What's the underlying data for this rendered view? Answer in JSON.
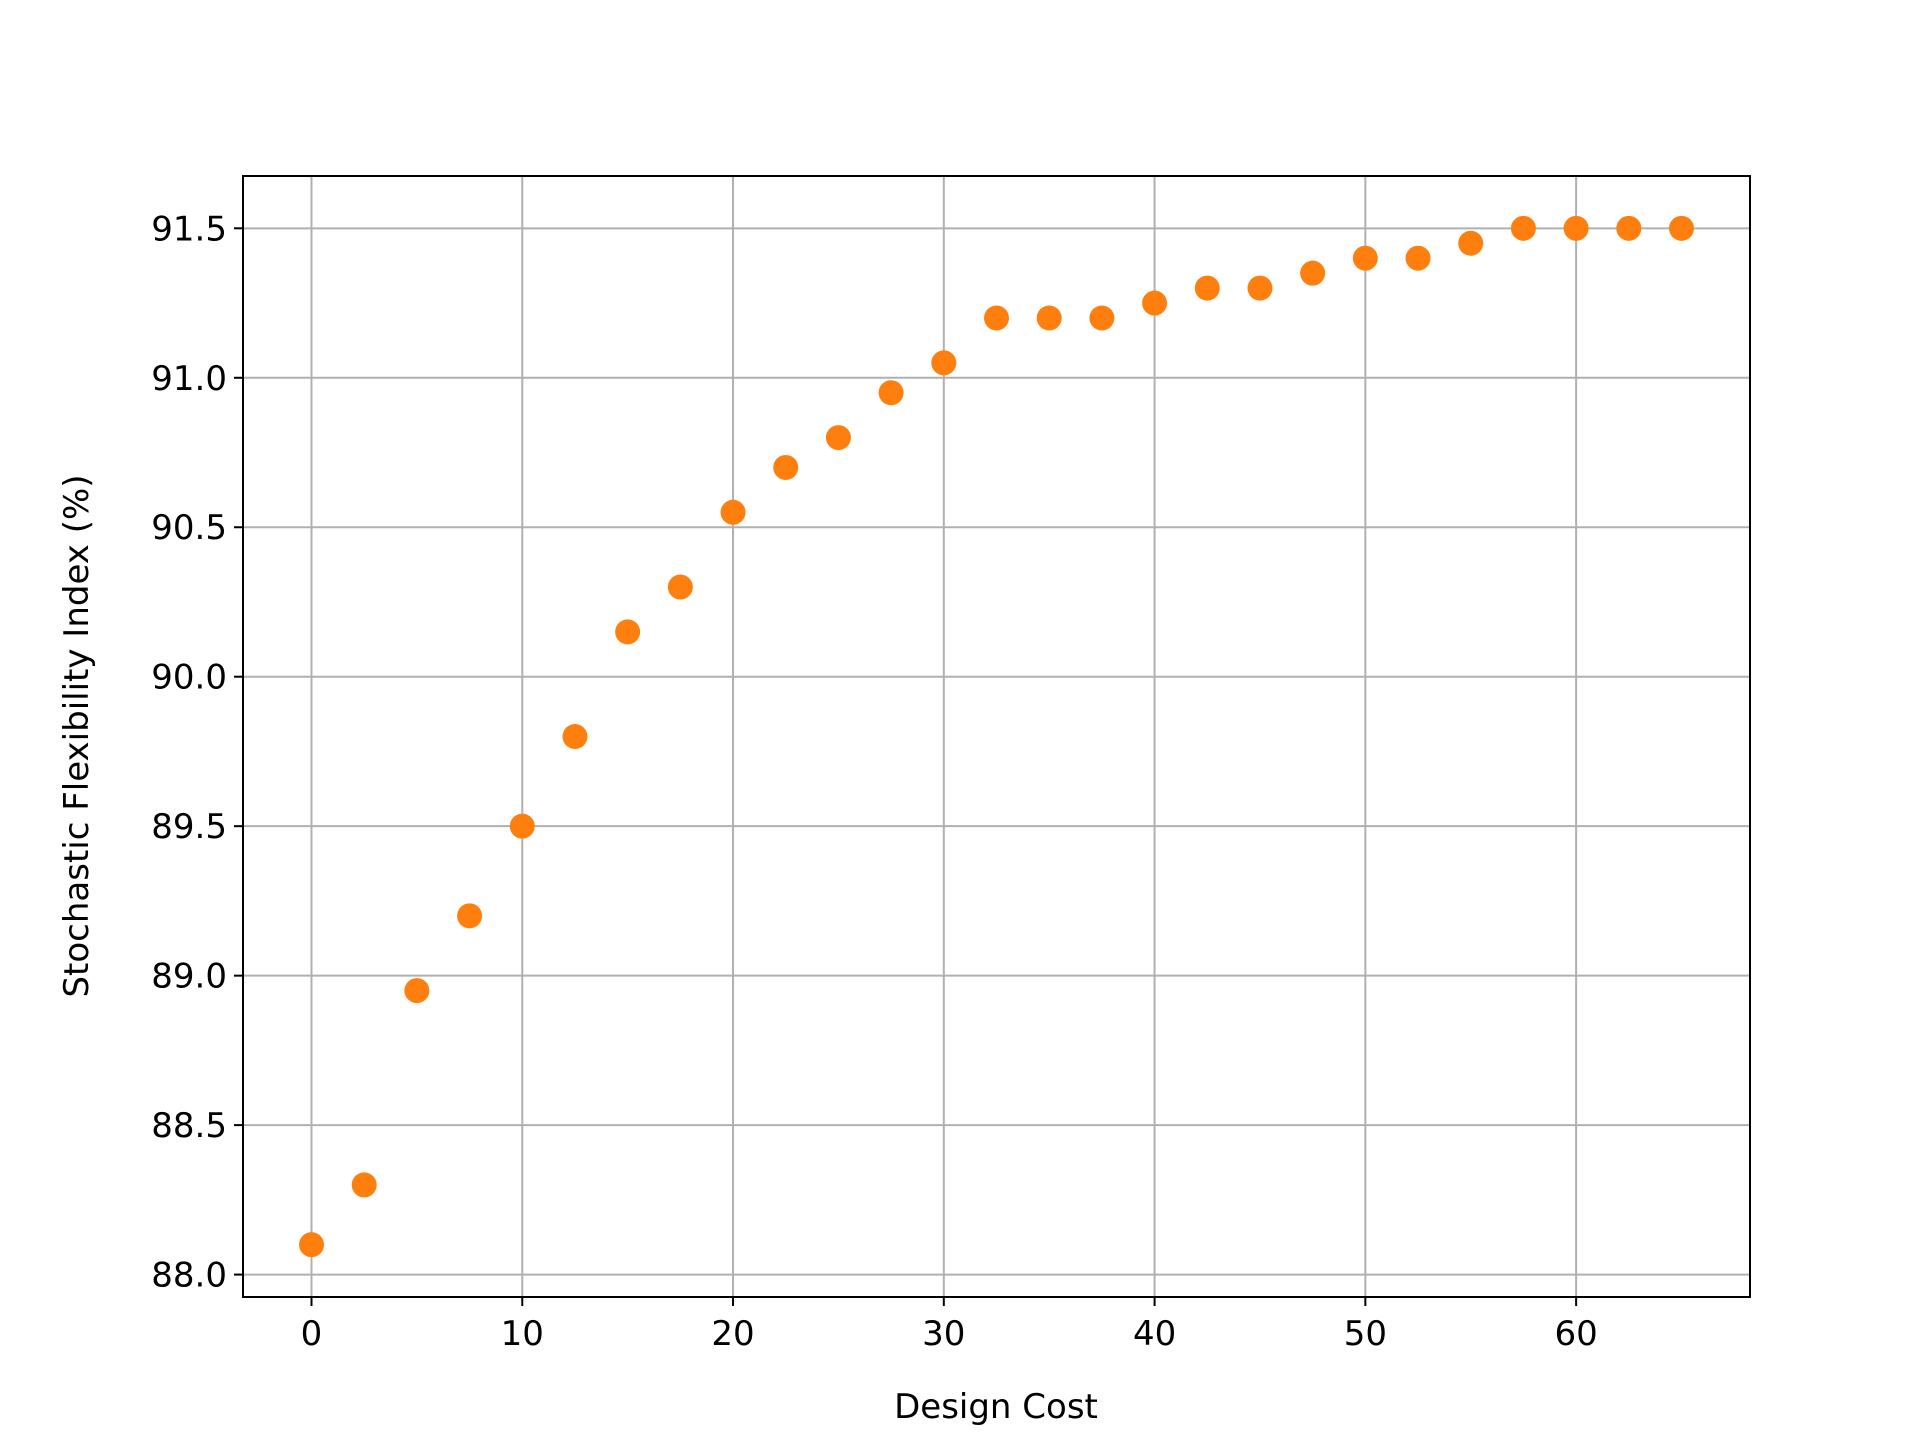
{
  "chart_data": {
    "type": "scatter",
    "x_label": "Design Cost",
    "y_label": "Stochastic Flexibility Index (%)",
    "x": [
      0,
      2.5,
      5,
      7.5,
      10,
      12.5,
      15,
      17.5,
      20,
      22.5,
      25,
      27.5,
      30,
      32.5,
      35,
      37.5,
      40,
      42.5,
      45,
      47.5,
      50,
      52.5,
      55,
      57.5,
      60,
      62.5,
      65
    ],
    "values": [
      88.1,
      88.3,
      88.95,
      89.2,
      89.5,
      89.8,
      90.15,
      90.3,
      90.55,
      90.7,
      90.8,
      90.95,
      91.05,
      91.2,
      91.2,
      91.2,
      91.25,
      91.3,
      91.3,
      91.35,
      91.4,
      91.4,
      91.45,
      91.5,
      91.5,
      91.5,
      91.5
    ],
    "color": "#ff7f0e",
    "xlim": [
      -3.25,
      68.25
    ],
    "xticks": [
      0,
      10,
      20,
      30,
      40,
      50,
      60
    ],
    "ylim": [
      87.925,
      91.675
    ],
    "yticks": [
      {
        "value": 88.0,
        "label": "88.0"
      },
      {
        "value": 88.5,
        "label": "88.5"
      },
      {
        "value": 89.0,
        "label": "89.0"
      },
      {
        "value": 89.5,
        "label": "89.5"
      },
      {
        "value": 90.0,
        "label": "90.0"
      },
      {
        "value": 90.5,
        "label": "90.5"
      },
      {
        "value": 91.0,
        "label": "91.0"
      },
      {
        "value": 91.5,
        "label": "91.5"
      }
    ],
    "grid": true
  }
}
